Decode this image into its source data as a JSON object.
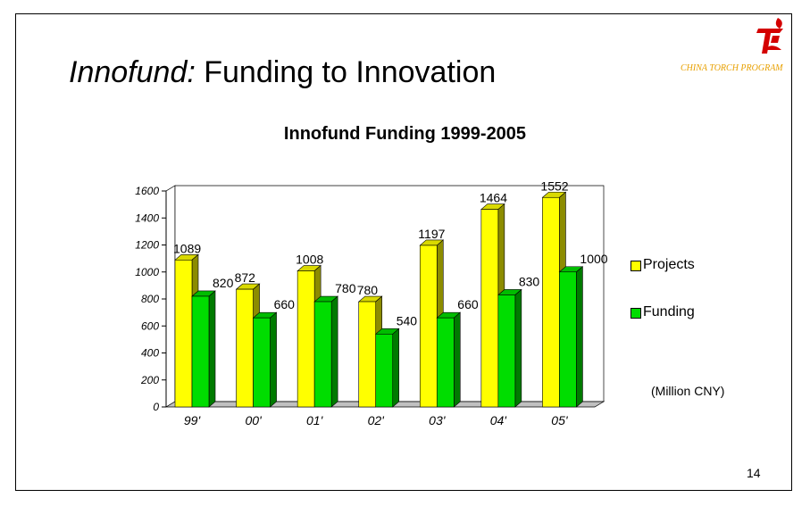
{
  "slide": {
    "title_italic": "Innofund:",
    "title_rest": " Funding to Innovation",
    "program": "CHINA TORCH PROGRAM",
    "unit_note": "(Million CNY)",
    "page_number": "14"
  },
  "colors": {
    "projects": "#ffff00",
    "funding": "#00dd00"
  },
  "chart_data": {
    "type": "bar",
    "title": "Innofund Funding 1999-2005",
    "categories": [
      "99'",
      "00'",
      "01'",
      "02'",
      "03'",
      "04'",
      "05'"
    ],
    "series": [
      {
        "name": "Projects",
        "values": [
          1089,
          872,
          1008,
          780,
          1197,
          1464,
          1552
        ]
      },
      {
        "name": "Funding",
        "values": [
          820,
          660,
          780,
          540,
          660,
          830,
          1000
        ]
      }
    ],
    "ylim": [
      0,
      1600
    ],
    "yticks": [
      0,
      200,
      400,
      600,
      800,
      1000,
      1200,
      1400,
      1600
    ],
    "grid": false,
    "legend_position": "right",
    "style": "3d-column"
  }
}
